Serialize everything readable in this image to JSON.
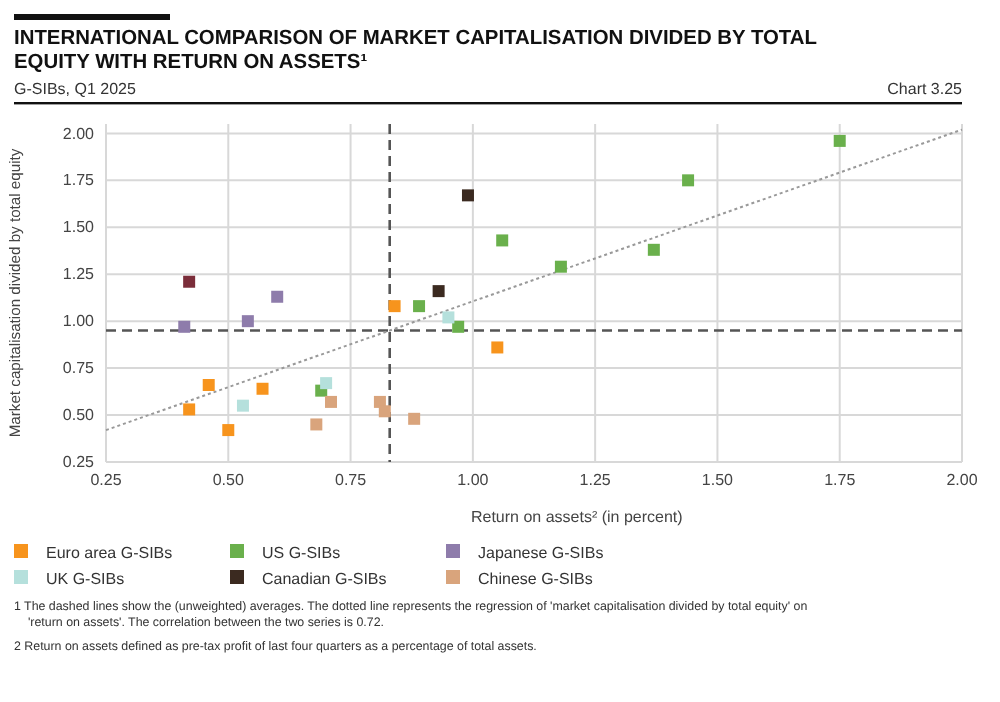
{
  "chart_data": {
    "type": "scatter",
    "title": "INTERNATIONAL COMPARISON OF MARKET CAPITALISATION DIVIDED BY TOTAL EQUITY WITH RETURN ON ASSETS¹",
    "subtitle": "G-SIBs, Q1 2025",
    "xlabel": "Return on assets² (in percent)",
    "ylabel": "Market capitalisation divided by total equity",
    "annotations": [
      "Chart 3.25",
      "1  The dashed lines show the (unweighted) averages. The dotted line represents the regression of 'market capitalisation divided by total equity' on 'return on assets'. The correlation between the two series is 0.72.",
      "2  Return on assets defined as pre-tax profit of last four quarters as a percentage of total assets."
    ],
    "xlim": [
      0.25,
      2.0
    ],
    "xticks": [
      {
        "value": 0.25,
        "label": "0.25"
      },
      {
        "value": 0.5,
        "label": "0.50"
      },
      {
        "value": 0.75,
        "label": "0.75"
      },
      {
        "value": 1.0,
        "label": "1.00"
      },
      {
        "value": 1.25,
        "label": "1.25"
      },
      {
        "value": 1.5,
        "label": "1.50"
      },
      {
        "value": 1.75,
        "label": "1.75"
      },
      {
        "value": 2.0,
        "label": "2.00"
      }
    ],
    "ylim": [
      0.25,
      2.05
    ],
    "yticks": [
      {
        "value": 0.25,
        "label": "0.25"
      },
      {
        "value": 0.5,
        "label": "0.50"
      },
      {
        "value": 0.75,
        "label": "0.75"
      },
      {
        "value": 1.0,
        "label": "1.00"
      },
      {
        "value": 1.25,
        "label": "1.25"
      },
      {
        "value": 1.5,
        "label": "1.50"
      },
      {
        "value": 1.75,
        "label": "1.75"
      },
      {
        "value": 2.0,
        "label": "2.00"
      }
    ],
    "grid": true,
    "legend": "bottom",
    "marker": "square",
    "ref_lines": [
      {
        "axis": "x",
        "value": 0.83,
        "color": "#555555",
        "line_style": "dashed"
      },
      {
        "axis": "y",
        "value": 0.95,
        "color": "#555555",
        "line_style": "dashed"
      }
    ],
    "series": [
      {
        "name": "Euro area G-SIBs",
        "color": "#f7941d",
        "x": [
          0.84,
          1.05,
          0.46,
          0.57,
          0.42,
          0.5
        ],
        "values": [
          1.08,
          0.86,
          0.66,
          0.64,
          0.53,
          0.42
        ]
      },
      {
        "name": "US G-SIBs",
        "color": "#6ab04c",
        "x": [
          1.06,
          1.18,
          0.89,
          0.97,
          0.69,
          1.44,
          1.37,
          1.75
        ],
        "values": [
          1.43,
          1.29,
          1.08,
          0.97,
          0.63,
          1.75,
          1.38,
          1.96
        ]
      },
      {
        "name": "Japanese G-SIBs",
        "color": "#8e7cab",
        "x": [
          0.41,
          0.54,
          0.6
        ],
        "values": [
          0.97,
          1.0,
          1.13
        ]
      },
      {
        "name": "UK G-SIBs",
        "color": "#b5e0dc",
        "x": [
          0.95,
          0.7,
          0.53
        ],
        "values": [
          1.02,
          0.67,
          0.55
        ]
      },
      {
        "name": "Canadian G-SIBs",
        "color": "#3b2a20",
        "x": [
          0.99,
          0.93
        ],
        "values": [
          1.67,
          1.16
        ]
      },
      {
        "name": "Chinese G-SIBs",
        "color": "#d9a47c",
        "x": [
          0.71,
          0.81,
          0.82,
          0.88,
          0.68
        ],
        "values": [
          0.57,
          0.57,
          0.52,
          0.48,
          0.45
        ]
      },
      {
        "color": "#7b2d3a",
        "x": [
          0.42
        ],
        "values": [
          1.21
        ]
      },
      {
        "type": "line",
        "color": "#999999",
        "line_style": "dotted",
        "marker": "none",
        "x": [
          0.25,
          2.0
        ],
        "values": [
          0.42,
          2.02
        ]
      }
    ]
  }
}
